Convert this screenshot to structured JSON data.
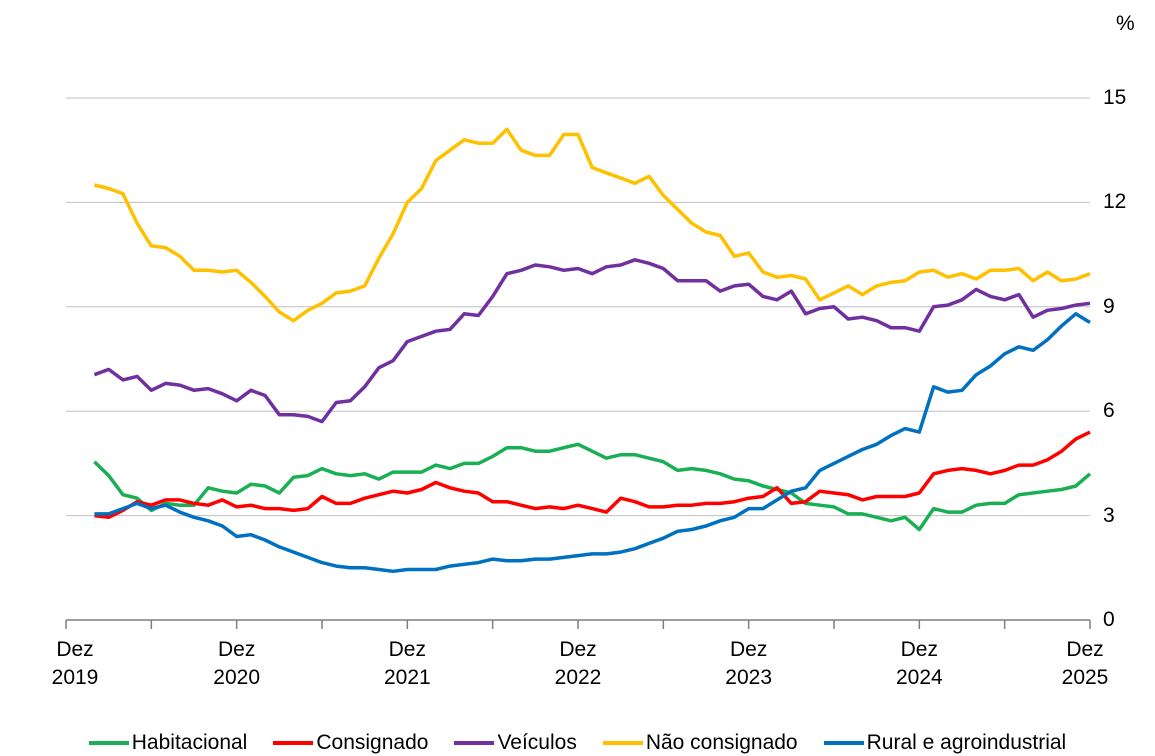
{
  "chart_data": {
    "type": "line",
    "y_label": "%",
    "categories": [
      "Dez\n2019",
      null,
      null,
      null,
      null,
      null,
      null,
      null,
      null,
      null,
      null,
      null,
      "Dez\n2020",
      null,
      null,
      null,
      null,
      null,
      null,
      null,
      null,
      null,
      null,
      null,
      "Dez\n2021",
      null,
      null,
      null,
      null,
      null,
      null,
      null,
      null,
      null,
      null,
      null,
      "Dez\n2022",
      null,
      null,
      null,
      null,
      null,
      null,
      null,
      null,
      null,
      null,
      null,
      "Dez\n2023",
      null,
      null,
      null,
      null,
      null,
      null,
      null,
      null,
      null,
      null,
      null,
      "Dez\n2024",
      null,
      null,
      null,
      null,
      null,
      null,
      null,
      null,
      null,
      null,
      null,
      "Dez\n2025"
    ],
    "ylim": [
      0,
      15
    ],
    "yticks": [
      0,
      3,
      6,
      9,
      12,
      15
    ],
    "grid": true,
    "series": [
      {
        "name": "Habitacional",
        "color": "#1aaf54",
        "values": [
          null,
          null,
          4.55,
          4.15,
          3.6,
          3.5,
          3.15,
          3.35,
          3.3,
          3.3,
          3.8,
          3.7,
          3.65,
          3.9,
          3.85,
          3.65,
          4.1,
          4.15,
          4.35,
          4.2,
          4.15,
          4.2,
          4.05,
          4.25,
          4.25,
          4.25,
          4.45,
          4.35,
          4.5,
          4.5,
          4.7,
          4.95,
          4.95,
          4.85,
          4.85,
          4.95,
          5.05,
          4.85,
          4.65,
          4.75,
          4.75,
          4.65,
          4.55,
          4.3,
          4.35,
          4.3,
          4.2,
          4.05,
          4.0,
          3.85,
          3.75,
          3.65,
          3.35,
          3.3,
          3.25,
          3.05,
          3.05,
          2.95,
          2.85,
          2.95,
          2.6,
          3.2,
          3.1,
          3.1,
          3.3,
          3.35,
          3.35,
          3.6,
          3.65,
          3.7,
          3.75,
          3.85,
          4.2
        ]
      },
      {
        "name": "Consignado",
        "color": "#ff0000",
        "values": [
          null,
          null,
          3.0,
          2.95,
          3.15,
          3.4,
          3.3,
          3.45,
          3.45,
          3.35,
          3.3,
          3.45,
          3.25,
          3.3,
          3.2,
          3.2,
          3.15,
          3.2,
          3.55,
          3.35,
          3.35,
          3.5,
          3.6,
          3.7,
          3.65,
          3.75,
          3.95,
          3.8,
          3.7,
          3.65,
          3.4,
          3.4,
          3.3,
          3.2,
          3.25,
          3.2,
          3.3,
          3.2,
          3.1,
          3.5,
          3.4,
          3.25,
          3.25,
          3.3,
          3.3,
          3.35,
          3.35,
          3.4,
          3.5,
          3.55,
          3.8,
          3.35,
          3.4,
          3.7,
          3.65,
          3.6,
          3.45,
          3.55,
          3.55,
          3.55,
          3.65,
          4.2,
          4.3,
          4.35,
          4.3,
          4.2,
          4.3,
          4.45,
          4.45,
          4.6,
          4.85,
          5.2,
          5.4
        ]
      },
      {
        "name": "Veículos",
        "color": "#7030a0",
        "values": [
          null,
          null,
          7.05,
          7.2,
          6.9,
          7.0,
          6.6,
          6.8,
          6.75,
          6.6,
          6.65,
          6.5,
          6.3,
          6.6,
          6.45,
          5.9,
          5.9,
          5.85,
          5.7,
          6.25,
          6.3,
          6.7,
          7.25,
          7.45,
          8.0,
          8.15,
          8.3,
          8.35,
          8.8,
          8.75,
          9.3,
          9.95,
          10.05,
          10.2,
          10.15,
          10.05,
          10.1,
          9.95,
          10.15,
          10.2,
          10.35,
          10.25,
          10.1,
          9.75,
          9.75,
          9.75,
          9.45,
          9.6,
          9.65,
          9.3,
          9.2,
          9.45,
          8.8,
          8.95,
          9.0,
          8.65,
          8.7,
          8.6,
          8.4,
          8.4,
          8.3,
          9.0,
          9.05,
          9.2,
          9.5,
          9.3,
          9.2,
          9.35,
          8.7,
          8.9,
          8.95,
          9.05,
          9.1
        ]
      },
      {
        "name": "Não consignado",
        "color": "#ffc000",
        "values": [
          null,
          null,
          12.5,
          12.4,
          12.25,
          11.4,
          10.75,
          10.7,
          10.45,
          10.05,
          10.05,
          10.0,
          10.05,
          9.7,
          9.3,
          8.85,
          8.6,
          8.9,
          9.1,
          9.4,
          9.45,
          9.6,
          10.4,
          11.1,
          12.0,
          12.4,
          13.2,
          13.5,
          13.8,
          13.7,
          13.7,
          14.1,
          13.5,
          13.35,
          13.35,
          13.95,
          13.95,
          13.0,
          12.85,
          12.7,
          12.55,
          12.75,
          12.2,
          11.8,
          11.4,
          11.15,
          11.05,
          10.45,
          10.55,
          10.0,
          9.85,
          9.9,
          9.8,
          9.2,
          9.4,
          9.6,
          9.35,
          9.6,
          9.7,
          9.75,
          10.0,
          10.05,
          9.85,
          9.95,
          9.8,
          10.05,
          10.05,
          10.1,
          9.75,
          10.0,
          9.75,
          9.8,
          9.95
        ]
      },
      {
        "name": "Rural e agroindustrial",
        "color": "#0070c0",
        "values": [
          null,
          null,
          3.05,
          3.05,
          3.2,
          3.35,
          3.2,
          3.3,
          3.1,
          2.95,
          2.85,
          2.7,
          2.4,
          2.45,
          2.3,
          2.1,
          1.95,
          1.8,
          1.65,
          1.55,
          1.5,
          1.5,
          1.45,
          1.4,
          1.45,
          1.45,
          1.45,
          1.55,
          1.6,
          1.65,
          1.75,
          1.7,
          1.7,
          1.75,
          1.75,
          1.8,
          1.85,
          1.9,
          1.9,
          1.95,
          2.05,
          2.2,
          2.35,
          2.55,
          2.6,
          2.7,
          2.85,
          2.95,
          3.2,
          3.2,
          3.45,
          3.7,
          3.8,
          4.3,
          4.5,
          4.7,
          4.9,
          5.05,
          5.3,
          5.5,
          5.4,
          6.7,
          6.55,
          6.6,
          7.05,
          7.3,
          7.65,
          7.85,
          7.75,
          8.05,
          8.45,
          8.8,
          8.55
        ]
      }
    ]
  }
}
